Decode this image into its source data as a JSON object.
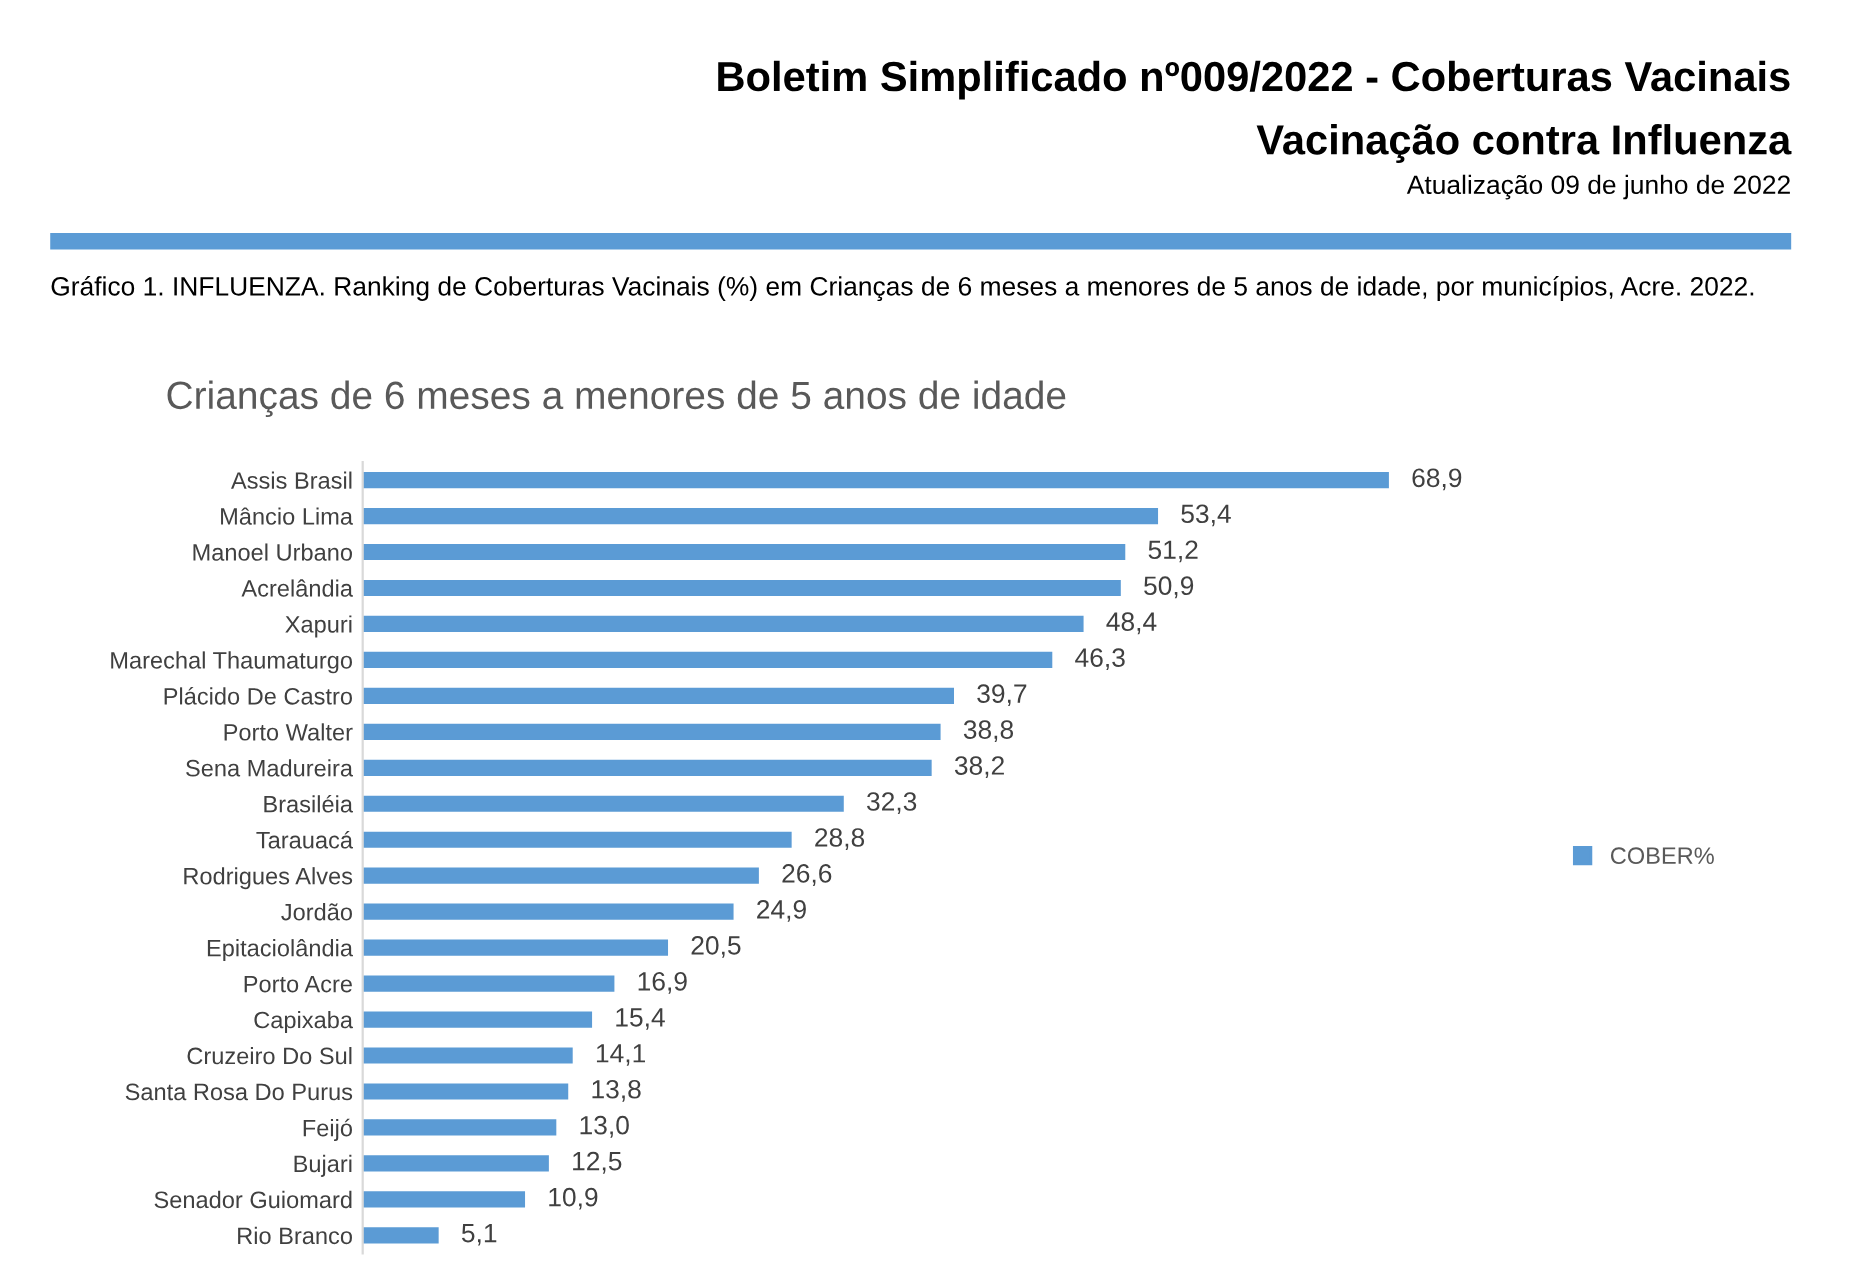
{
  "chart_data": {
    "type": "bar",
    "orientation": "horizontal",
    "title": "Crianças de 6 meses a menores de 5 anos de idade",
    "annotations": [
      "Boletim Simplificado nº009/2022 - Coberturas Vacinais",
      "Vacinação contra Influenza",
      "Atualização 09 de junho de 2022",
      "Gráfico 1. INFLUENZA. Ranking de Coberturas Vacinais (%) em Crianças de 6 meses a menores de 5 anos de idade, por municípios, Acre. 2022."
    ],
    "categories": [
      "Assis Brasil",
      "Mâncio Lima",
      "Manoel Urbano",
      "Acrelândia",
      "Xapuri",
      "Marechal Thaumaturgo",
      "Plácido De Castro",
      "Porto Walter",
      "Sena Madureira",
      "Brasiléia",
      "Tarauacá",
      "Rodrigues Alves",
      "Jordão",
      "Epitaciolândia",
      "Porto Acre",
      "Capixaba",
      "Cruzeiro Do Sul",
      "Santa Rosa Do Purus",
      "Feijó",
      "Bujari",
      "Senador Guiomard",
      "Rio Branco"
    ],
    "series": [
      {
        "name": "COBER%",
        "color": "#5b9bd5",
        "values": [
          68.9,
          53.4,
          51.2,
          50.9,
          48.4,
          46.3,
          39.7,
          38.8,
          38.2,
          32.3,
          28.8,
          26.6,
          24.9,
          20.5,
          16.9,
          15.4,
          14.1,
          13.8,
          13.0,
          12.5,
          10.9,
          5.1
        ],
        "value_labels": [
          "68,9",
          "53,4",
          "51,2",
          "50,9",
          "48,4",
          "46,3",
          "39,7",
          "38,8",
          "38,2",
          "32,3",
          "28,8",
          "26,6",
          "24,9",
          "20,5",
          "16,9",
          "15,4",
          "14,1",
          "13,8",
          "13,0",
          "12,5",
          "10,9",
          "5,1"
        ]
      }
    ],
    "tick_labels": "y",
    "grid": false,
    "legend": "right"
  }
}
